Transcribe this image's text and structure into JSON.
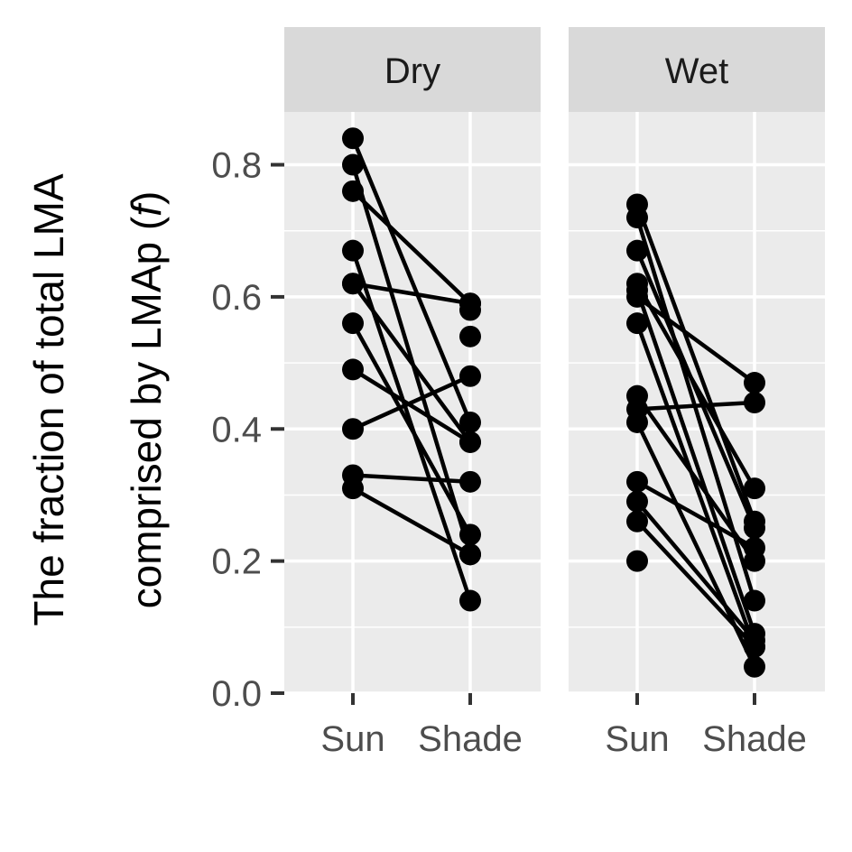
{
  "chart_data": {
    "type": "line",
    "ylabel_line1": "The fraction of total LMA",
    "ylabel_line2_prefix": "comprised by LMAp (",
    "ylabel_line2_symbol": "f",
    "ylabel_line2_suffix": ")",
    "categories": [
      "Sun",
      "Shade"
    ],
    "ylim": [
      0,
      0.88
    ],
    "yticks": [
      0.0,
      0.2,
      0.4,
      0.6,
      0.8
    ],
    "ytick_labels": [
      "0.0",
      "0.2",
      "0.4",
      "0.6",
      "0.8"
    ],
    "grid": true,
    "panels": [
      {
        "name": "Dry",
        "pairs": [
          [
            0.84,
            0.41
          ],
          [
            0.8,
            0.21
          ],
          [
            0.76,
            0.59
          ],
          [
            0.67,
            0.14
          ],
          [
            0.62,
            0.59
          ],
          [
            0.62,
            0.38
          ],
          [
            0.56,
            0.24
          ],
          [
            0.49,
            0.38
          ],
          [
            0.4,
            0.48
          ],
          [
            0.33,
            0.32
          ],
          [
            0.31,
            0.21
          ],
          [
            null,
            0.58
          ],
          [
            null,
            0.54
          ]
        ]
      },
      {
        "name": "Wet",
        "pairs": [
          [
            0.74,
            0.26
          ],
          [
            0.72,
            0.14
          ],
          [
            0.67,
            0.25
          ],
          [
            0.62,
            0.31
          ],
          [
            0.61,
            0.09
          ],
          [
            0.6,
            0.47
          ],
          [
            0.56,
            0.07
          ],
          [
            0.45,
            0.2
          ],
          [
            0.43,
            0.44
          ],
          [
            0.41,
            0.04
          ],
          [
            0.32,
            0.22
          ],
          [
            0.29,
            0.08
          ],
          [
            0.26,
            0.07
          ],
          [
            0.2,
            null
          ]
        ]
      }
    ]
  }
}
